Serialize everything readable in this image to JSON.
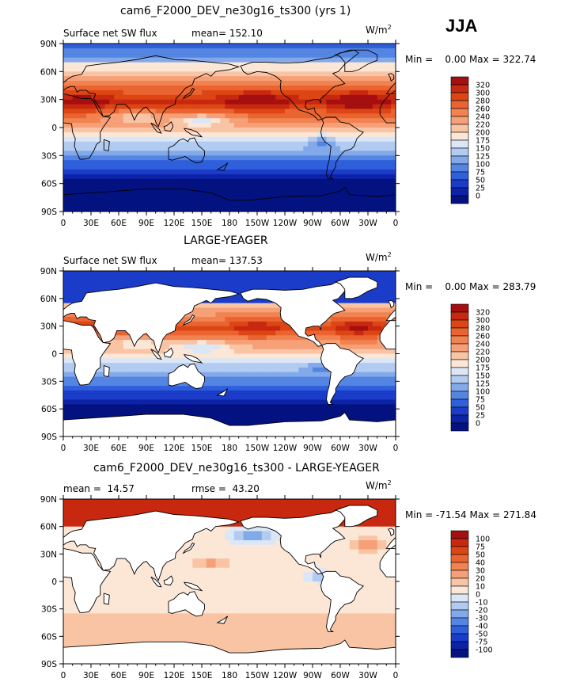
{
  "season": "JJA",
  "units": "W/m",
  "units_sup": "2",
  "chart_data": [
    {
      "type": "heatmap",
      "title": "cam6_F2000_DEV_ne30g16_ts300 (yrs 1)",
      "left_label": "Surface net SW flux",
      "stat_label": "mean= 152.10",
      "minmax": "Min =    0.00 Max = 322.74",
      "min": 0.0,
      "max": 322.74,
      "mean": 152.1,
      "variant": "model",
      "colorbar_levels": [
        "320",
        "300",
        "280",
        "260",
        "240",
        "220",
        "200",
        "175",
        "150",
        "125",
        "100",
        "75",
        "50",
        "25",
        "0"
      ],
      "colorbar_colors": [
        "#a50f0f",
        "#c8280f",
        "#dc4614",
        "#ea6432",
        "#f28250",
        "#f6a078",
        "#f8c4a4",
        "#fce6d6",
        "#dbe7f7",
        "#b2cbf0",
        "#82aaea",
        "#5585e3",
        "#2f5fdb",
        "#1a3cc8",
        "#0c23a8",
        "#031280"
      ],
      "x_ticks": [
        "0",
        "30E",
        "60E",
        "90E",
        "120E",
        "150E",
        "180",
        "150W",
        "120W",
        "90W",
        "60W",
        "30W",
        "0"
      ],
      "y_ticks": [
        "90N",
        "60N",
        "30N",
        "0",
        "30S",
        "60S",
        "90S"
      ]
    },
    {
      "type": "heatmap",
      "title": "LARGE-YEAGER",
      "left_label": "Surface net SW flux",
      "stat_label": "mean= 137.53",
      "minmax": "Min =    0.00 Max = 283.79",
      "min": 0.0,
      "max": 283.79,
      "mean": 137.53,
      "variant": "obs",
      "colorbar_levels": [
        "320",
        "300",
        "280",
        "260",
        "240",
        "220",
        "200",
        "175",
        "150",
        "125",
        "100",
        "75",
        "50",
        "25",
        "0"
      ],
      "colorbar_colors": [
        "#a50f0f",
        "#c8280f",
        "#dc4614",
        "#ea6432",
        "#f28250",
        "#f6a078",
        "#f8c4a4",
        "#fce6d6",
        "#dbe7f7",
        "#b2cbf0",
        "#82aaea",
        "#5585e3",
        "#2f5fdb",
        "#1a3cc8",
        "#0c23a8",
        "#031280"
      ],
      "x_ticks": [
        "0",
        "30E",
        "60E",
        "90E",
        "120E",
        "150E",
        "180",
        "150W",
        "120W",
        "90W",
        "60W",
        "30W",
        "0"
      ],
      "y_ticks": [
        "90N",
        "60N",
        "30N",
        "0",
        "30S",
        "60S",
        "90S"
      ]
    },
    {
      "type": "heatmap",
      "title": "cam6_F2000_DEV_ne30g16_ts300 - LARGE-YEAGER",
      "left_label": "mean =  14.57",
      "stat_label": "rmse =  43.20",
      "minmax": "Min = -71.54 Max = 271.84",
      "min": -71.54,
      "max": 271.84,
      "mean": 14.57,
      "rmse": 43.2,
      "variant": "diff",
      "colorbar_levels": [
        "100",
        "75",
        "50",
        "40",
        "30",
        "20",
        "10",
        "0",
        "-10",
        "-20",
        "-30",
        "-40",
        "-50",
        "-75",
        "-100"
      ],
      "colorbar_colors": [
        "#a50f0f",
        "#c8280f",
        "#dc4614",
        "#ea6432",
        "#f28250",
        "#f6a078",
        "#f8c4a4",
        "#fce6d6",
        "#dbe7f7",
        "#b2cbf0",
        "#82aaea",
        "#5585e3",
        "#2f5fdb",
        "#1a3cc8",
        "#0c23a8",
        "#031280"
      ],
      "x_ticks": [
        "0",
        "30E",
        "60E",
        "90E",
        "120E",
        "150E",
        "180",
        "150W",
        "120W",
        "90W",
        "60W",
        "30W",
        "0"
      ],
      "y_ticks": [
        "90N",
        "60N",
        "30N",
        "0",
        "30S",
        "60S",
        "90S"
      ]
    }
  ]
}
